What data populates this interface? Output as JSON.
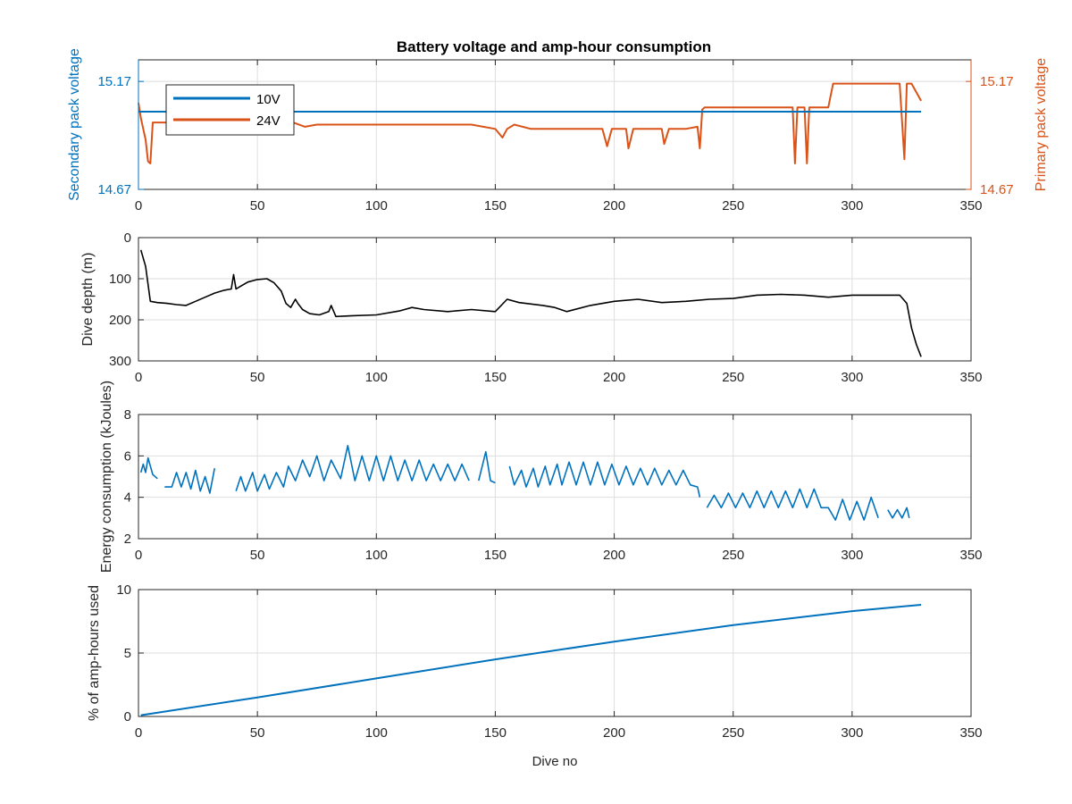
{
  "figure": {
    "title": "Battery voltage and amp-hour consumption",
    "background": "#ffffff"
  },
  "colors": {
    "series10V": "#0072BD",
    "series24V": "#D95319",
    "depth": "#000000",
    "grid": "#dedede",
    "axis": "#262626"
  },
  "chart_data": [
    {
      "type": "line",
      "title": "Battery voltage and amp-hour consumption",
      "xlabel": "",
      "ylabel": "Secondary pack voltage",
      "ylabel_right": "Primary pack voltage",
      "xlim": [
        0,
        350
      ],
      "ylim": [
        14.67,
        15.27
      ],
      "ylim_right": [
        14.67,
        15.27
      ],
      "xticks": [
        0,
        50,
        100,
        150,
        200,
        250,
        300,
        350
      ],
      "yticks": [
        14.67,
        15.17
      ],
      "ytick_labels": [
        "14.67",
        "15.17"
      ],
      "yticks_right": [
        14.67,
        15.17
      ],
      "ytick_labels_right": [
        "14.67",
        "15.17"
      ],
      "grid": true,
      "legend": {
        "placement": "top-left",
        "entries": [
          "10V",
          "24V"
        ]
      },
      "series": [
        {
          "name": "10V",
          "axis": "left",
          "x": [
            0,
            329
          ],
          "y": [
            15.03,
            15.03
          ]
        },
        {
          "name": "24V",
          "axis": "right",
          "x": [
            0,
            1,
            3,
            4,
            5,
            6,
            8,
            10,
            15,
            20,
            22,
            25,
            30,
            33,
            35,
            40,
            43,
            45,
            50,
            55,
            60,
            65,
            70,
            75,
            80,
            90,
            100,
            110,
            120,
            130,
            140,
            150,
            153,
            155,
            158,
            165,
            170,
            175,
            180,
            185,
            190,
            195,
            197,
            199,
            205,
            206,
            208,
            215,
            220,
            221,
            223,
            230,
            235,
            236,
            237,
            238,
            240,
            250,
            260,
            270,
            275,
            276,
            277,
            280,
            281,
            282,
            285,
            290,
            292,
            300,
            310,
            320,
            322,
            323,
            325,
            329
          ],
          "y": [
            15.07,
            15.0,
            14.9,
            14.8,
            14.79,
            14.98,
            14.98,
            14.98,
            14.98,
            14.98,
            14.93,
            14.98,
            14.98,
            14.96,
            14.98,
            14.98,
            14.94,
            14.98,
            14.98,
            14.98,
            14.98,
            14.98,
            14.96,
            14.97,
            14.97,
            14.97,
            14.97,
            14.97,
            14.97,
            14.97,
            14.97,
            14.95,
            14.91,
            14.95,
            14.97,
            14.95,
            14.95,
            14.95,
            14.95,
            14.95,
            14.95,
            14.95,
            14.87,
            14.95,
            14.95,
            14.86,
            14.95,
            14.95,
            14.95,
            14.88,
            14.95,
            14.95,
            14.96,
            14.86,
            15.04,
            15.05,
            15.05,
            15.05,
            15.05,
            15.05,
            15.05,
            14.79,
            15.05,
            15.05,
            14.79,
            15.05,
            15.05,
            15.05,
            15.16,
            15.16,
            15.16,
            15.16,
            14.81,
            15.16,
            15.16,
            15.08
          ]
        }
      ]
    },
    {
      "type": "line",
      "xlabel": "",
      "ylabel": "Dive depth (m)",
      "xlim": [
        0,
        350
      ],
      "ylim": [
        0,
        300
      ],
      "y_reversed": true,
      "xticks": [
        0,
        50,
        100,
        150,
        200,
        250,
        300,
        350
      ],
      "yticks": [
        0,
        100,
        200,
        300
      ],
      "grid": true,
      "series": [
        {
          "x": [
            1,
            3,
            5,
            8,
            12,
            16,
            20,
            24,
            28,
            32,
            36,
            39,
            40,
            41,
            43,
            46,
            50,
            54,
            57,
            60,
            62,
            64,
            66,
            67,
            69,
            72,
            76,
            80,
            81,
            83,
            90,
            100,
            110,
            115,
            120,
            130,
            140,
            150,
            155,
            160,
            170,
            175,
            180,
            190,
            200,
            210,
            220,
            230,
            240,
            250,
            260,
            270,
            280,
            290,
            300,
            310,
            320,
            323,
            325,
            327,
            329
          ],
          "y": [
            30,
            70,
            155,
            158,
            160,
            163,
            165,
            155,
            145,
            135,
            128,
            125,
            90,
            125,
            118,
            108,
            102,
            100,
            110,
            130,
            160,
            170,
            150,
            160,
            175,
            185,
            188,
            180,
            165,
            192,
            190,
            188,
            178,
            170,
            175,
            180,
            175,
            180,
            150,
            158,
            165,
            170,
            180,
            165,
            155,
            150,
            158,
            155,
            150,
            148,
            140,
            138,
            140,
            145,
            140,
            140,
            140,
            160,
            220,
            260,
            290
          ]
        }
      ]
    },
    {
      "type": "line",
      "xlabel": "",
      "ylabel": "Energy consumption (kJoules)",
      "xlim": [
        0,
        350
      ],
      "ylim": [
        2,
        8
      ],
      "xticks": [
        0,
        50,
        100,
        150,
        200,
        250,
        300,
        350
      ],
      "yticks": [
        2,
        4,
        6,
        8
      ],
      "grid": true,
      "segments": [
        {
          "x": [
            1,
            2,
            3,
            4,
            6,
            8
          ],
          "y": [
            5.2,
            5.6,
            5.2,
            5.9,
            5.1,
            4.9
          ]
        },
        {
          "x": [
            11,
            14,
            16,
            18,
            20,
            22,
            24,
            26,
            28,
            30,
            32
          ],
          "y": [
            4.5,
            4.5,
            5.2,
            4.5,
            5.2,
            4.4,
            5.3,
            4.3,
            5.0,
            4.2,
            5.4
          ]
        },
        {
          "x": [
            41,
            43,
            45,
            48,
            50,
            53,
            55,
            58,
            61,
            63,
            66,
            69,
            72,
            75,
            78,
            81,
            85,
            88,
            91,
            94,
            97,
            100,
            103,
            106,
            109,
            112,
            115,
            118,
            121,
            124,
            127,
            130,
            133,
            136,
            139
          ],
          "y": [
            4.3,
            5.0,
            4.3,
            5.2,
            4.3,
            5.1,
            4.4,
            5.2,
            4.5,
            5.5,
            4.8,
            5.8,
            5.0,
            6.0,
            4.8,
            5.8,
            4.9,
            6.5,
            4.8,
            6.0,
            4.8,
            6.0,
            4.8,
            6.0,
            4.8,
            5.8,
            4.8,
            5.8,
            4.8,
            5.6,
            4.8,
            5.6,
            4.8,
            5.6,
            4.8
          ]
        },
        {
          "x": [
            143,
            146,
            148,
            150
          ],
          "y": [
            4.8,
            6.2,
            4.8,
            4.7
          ]
        },
        {
          "x": [
            156,
            158,
            161,
            163,
            166,
            168,
            171,
            173,
            176,
            178,
            181,
            184,
            187,
            190,
            193,
            196,
            199,
            202,
            205,
            208,
            211,
            214,
            217,
            220,
            223,
            226,
            229,
            232,
            235,
            236
          ],
          "y": [
            5.5,
            4.6,
            5.3,
            4.5,
            5.4,
            4.5,
            5.5,
            4.6,
            5.6,
            4.6,
            5.7,
            4.6,
            5.7,
            4.6,
            5.7,
            4.6,
            5.6,
            4.6,
            5.5,
            4.6,
            5.4,
            4.6,
            5.4,
            4.6,
            5.3,
            4.6,
            5.3,
            4.6,
            4.5,
            4.0
          ]
        },
        {
          "x": [
            239,
            242,
            245,
            248,
            251,
            254,
            257,
            260,
            263,
            266,
            269,
            272,
            275,
            278,
            281,
            284,
            287,
            290,
            293,
            296,
            299,
            302,
            305,
            308,
            311
          ],
          "y": [
            3.5,
            4.1,
            3.5,
            4.2,
            3.5,
            4.2,
            3.5,
            4.3,
            3.5,
            4.3,
            3.5,
            4.3,
            3.5,
            4.4,
            3.5,
            4.4,
            3.5,
            3.5,
            2.9,
            3.9,
            2.9,
            3.8,
            2.9,
            4.0,
            3.0
          ]
        },
        {
          "x": [
            315,
            317,
            319,
            321,
            323,
            324
          ],
          "y": [
            3.4,
            3.0,
            3.4,
            3.0,
            3.5,
            3.0
          ]
        }
      ]
    },
    {
      "type": "line",
      "xlabel": "Dive no",
      "ylabel": "% of amp-hours used",
      "xlim": [
        0,
        350
      ],
      "ylim": [
        0,
        10
      ],
      "xticks": [
        0,
        50,
        100,
        150,
        200,
        250,
        300,
        350
      ],
      "yticks": [
        0,
        5,
        10
      ],
      "grid": true,
      "series": [
        {
          "x": [
            1,
            50,
            100,
            150,
            200,
            250,
            300,
            329
          ],
          "y": [
            0.1,
            1.5,
            3.0,
            4.5,
            5.9,
            7.2,
            8.3,
            8.8
          ]
        }
      ]
    }
  ]
}
